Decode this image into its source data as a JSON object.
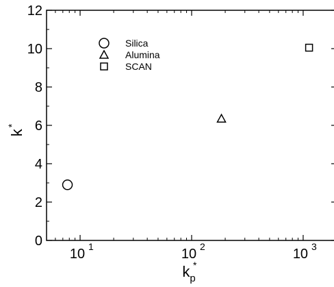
{
  "chart_data": {
    "type": "scatter",
    "title": "",
    "xlabel": {
      "base": "k",
      "sup": "*",
      "sub": "p"
    },
    "ylabel": {
      "base": "k",
      "sup": "*"
    },
    "xscale": "log",
    "xlim": [
      5,
      2000
    ],
    "ylim": [
      0,
      12
    ],
    "x_ticks": [
      {
        "value": 10,
        "base": "10",
        "exp": "1"
      },
      {
        "value": 100,
        "base": "10",
        "exp": "2"
      },
      {
        "value": 1000,
        "base": "10",
        "exp": "3"
      }
    ],
    "y_ticks": [
      "0",
      "2",
      "4",
      "6",
      "8",
      "10",
      "12"
    ],
    "grid": false,
    "legend_position": "top-left",
    "marker_color": "#000000",
    "series": [
      {
        "name": "Silica",
        "marker": "circle",
        "points": [
          {
            "x": 7.7,
            "y": 2.9
          }
        ]
      },
      {
        "name": "Alumina",
        "marker": "triangle",
        "points": [
          {
            "x": 185,
            "y": 6.35
          }
        ]
      },
      {
        "name": "SCAN",
        "marker": "square",
        "points": [
          {
            "x": 1130,
            "y": 10.05
          }
        ]
      }
    ]
  }
}
